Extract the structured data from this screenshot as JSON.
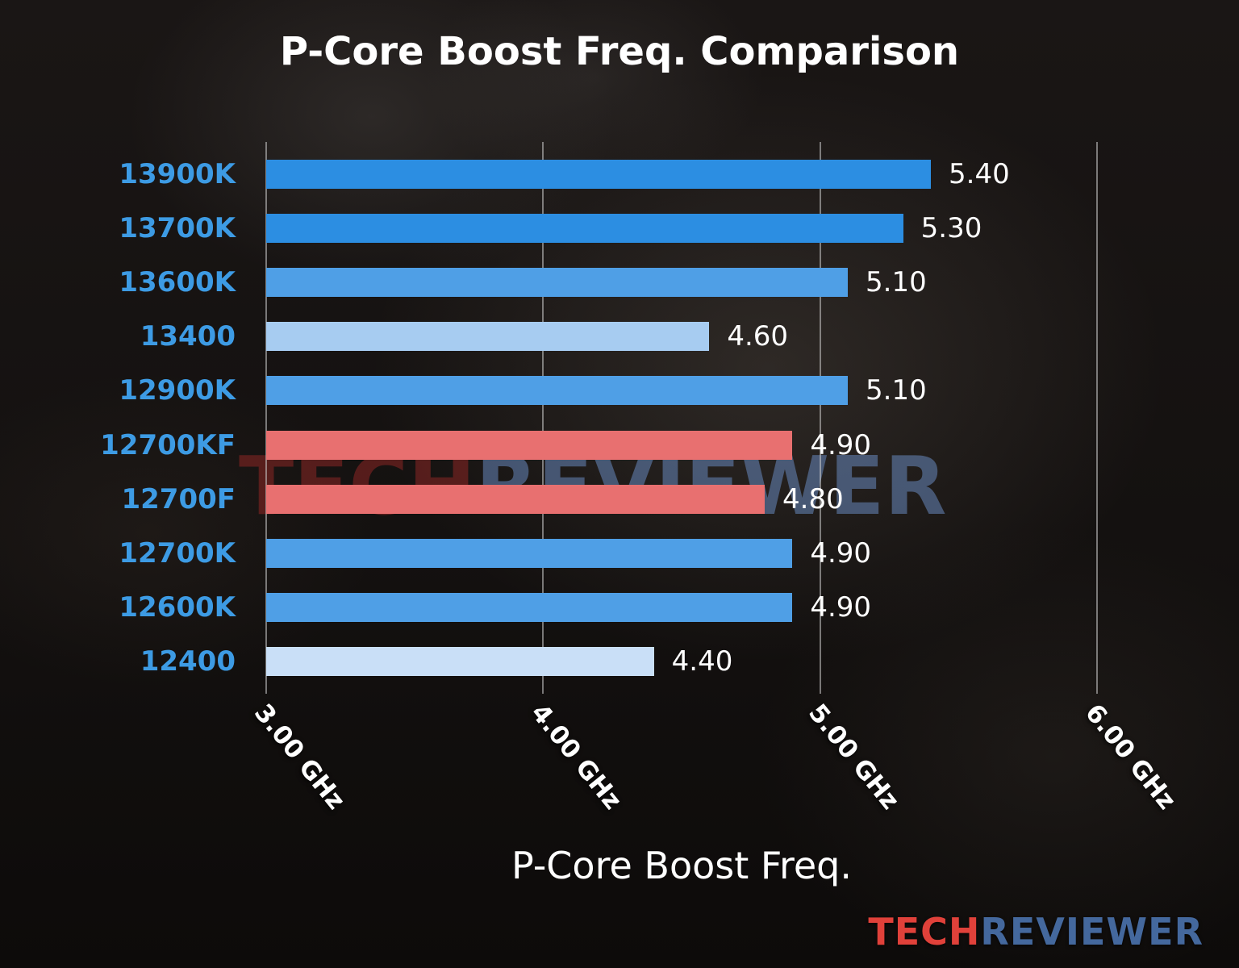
{
  "chart_data": {
    "type": "bar",
    "orientation": "horizontal",
    "title": "P-Core Boost Freq. Comparison",
    "xlabel": "P-Core Boost Freq.",
    "xlim": [
      3.0,
      6.0
    ],
    "grid_on": true,
    "grid_color": "rgba(205,205,205,0.55)",
    "category_label_color": "#3d9be4",
    "x_ticks": [
      {
        "label": "3.00 GHz",
        "value": 3.0
      },
      {
        "label": "4.00 GHz",
        "value": 4.0
      },
      {
        "label": "5.00 GHz",
        "value": 5.0
      },
      {
        "label": "6.00 GHz",
        "value": 6.0
      }
    ],
    "categories": [
      "13900K",
      "13700K",
      "13600K",
      "13400",
      "12900K",
      "12700KF",
      "12700F",
      "12700K",
      "12600K",
      "12400"
    ],
    "values": [
      5.4,
      5.3,
      5.1,
      4.6,
      5.1,
      4.9,
      4.8,
      4.9,
      4.9,
      4.4
    ],
    "value_labels": [
      "5.40",
      "5.30",
      "5.10",
      "4.60",
      "5.10",
      "4.90",
      "4.80",
      "4.90",
      "4.90",
      "4.40"
    ],
    "bar_colors": [
      "#2c8ee2",
      "#2c8ee2",
      "#4f9fe6",
      "#a7ccf1",
      "#4f9fe6",
      "#e87070",
      "#e87070",
      "#4f9fe6",
      "#4f9fe6",
      "#c9dff7"
    ]
  },
  "watermark": {
    "part1": "TECH",
    "part2": "REVIEWER"
  },
  "logo": {
    "part1": "TECH",
    "part2": "REVIEWER",
    "part1_color": "#e0413a",
    "part2_color": "#44689d"
  }
}
